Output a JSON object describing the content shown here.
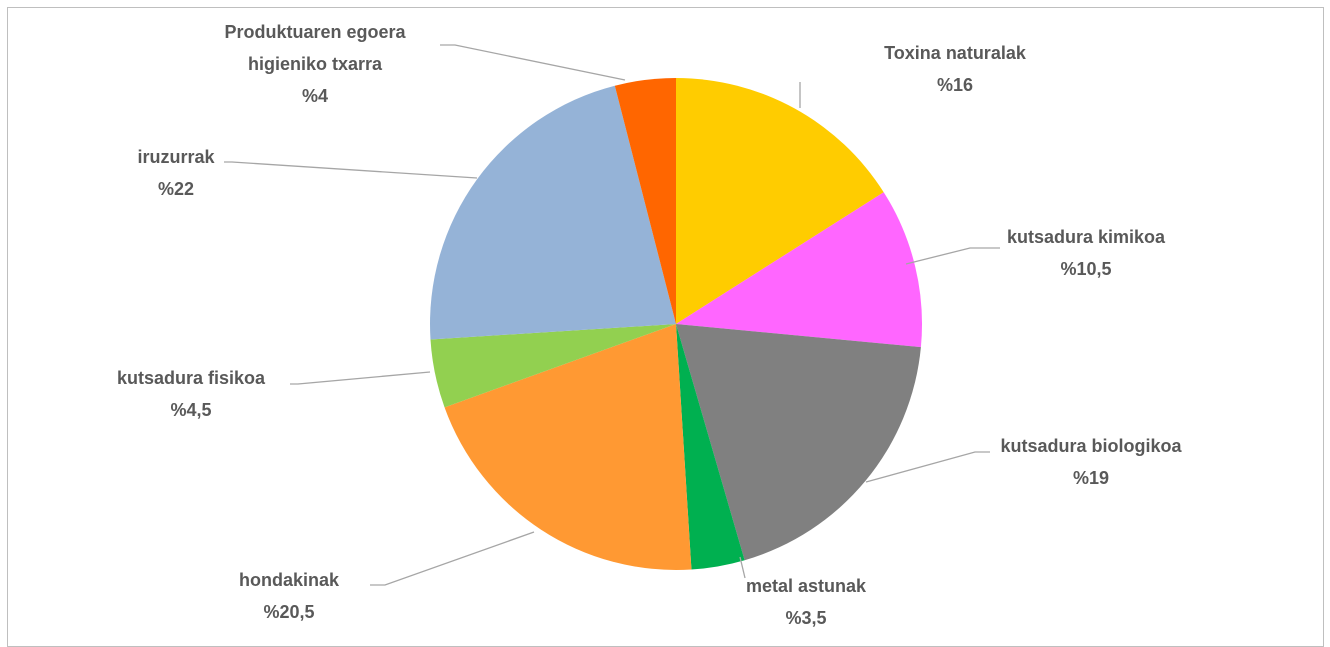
{
  "chart_data": {
    "type": "pie",
    "title": "",
    "slices": [
      {
        "label": "Toxina naturalak",
        "value": 16,
        "value_label": "%16",
        "color": "#FFCC00"
      },
      {
        "label": "kutsadura kimikoa",
        "value": 10.5,
        "value_label": "%10,5",
        "color": "#FF66FF"
      },
      {
        "label": "kutsadura biologikoa",
        "value": 19,
        "value_label": "%19",
        "color": "#808080"
      },
      {
        "label": "metal astunak",
        "value": 3.5,
        "value_label": "%3,5",
        "color": "#00B050"
      },
      {
        "label": "hondakinak",
        "value": 20.5,
        "value_label": "%20,5",
        "color": "#FF9933"
      },
      {
        "label": "kutsadura fisikoa",
        "value": 4.5,
        "value_label": "%4,5",
        "color": "#92D050"
      },
      {
        "label": "iruzurrak",
        "value": 22,
        "value_label": "%22",
        "color": "#95B3D7"
      },
      {
        "label": "Produktuaren egoera higieniko txarra",
        "value": 4,
        "value_label": "%4",
        "color": "#FF6600"
      }
    ],
    "legend": "none",
    "data_labels": "outside-with-leader-lines"
  }
}
